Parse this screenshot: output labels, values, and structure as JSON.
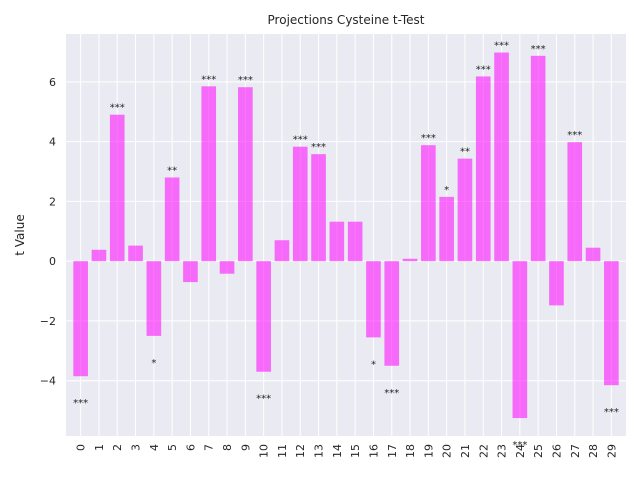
{
  "chart_data": {
    "type": "bar",
    "title": "Projections Cysteine t-Test",
    "xlabel": "",
    "ylabel": "t Value",
    "categories": [
      "0",
      "1",
      "2",
      "3",
      "4",
      "5",
      "6",
      "7",
      "8",
      "9",
      "10",
      "11",
      "12",
      "13",
      "14",
      "15",
      "16",
      "17",
      "18",
      "19",
      "20",
      "21",
      "22",
      "23",
      "24",
      "25",
      "26",
      "27",
      "28",
      "29"
    ],
    "values": [
      -3.85,
      0.38,
      4.9,
      0.52,
      -2.5,
      2.8,
      -0.7,
      5.85,
      -0.42,
      5.82,
      -3.7,
      0.7,
      3.83,
      3.58,
      1.32,
      1.32,
      -2.55,
      -3.5,
      0.08,
      3.88,
      2.15,
      3.43,
      6.18,
      6.98,
      -5.25,
      6.87,
      -1.48,
      3.98,
      0.45,
      -4.15
    ],
    "significance": [
      "***",
      "",
      "***",
      "",
      "*",
      "**",
      "",
      "***",
      "",
      "***",
      "***",
      "",
      "***",
      "***",
      "",
      "",
      "*",
      "***",
      "",
      "***",
      "*",
      "**",
      "***",
      "***",
      "***",
      "***",
      "",
      "***",
      "",
      "***"
    ],
    "ylim": [
      -5.85,
      7.6
    ],
    "yticks": [
      -4,
      -2,
      0,
      2,
      4,
      6
    ],
    "ytick_labels": [
      "−4",
      "−2",
      "0",
      "2",
      "4",
      "6"
    ],
    "bar_color": "#ff00ff",
    "bar_opacity": 0.55,
    "background_color": "#eaeaf2",
    "grid_color": "#ffffff",
    "grid": true
  }
}
